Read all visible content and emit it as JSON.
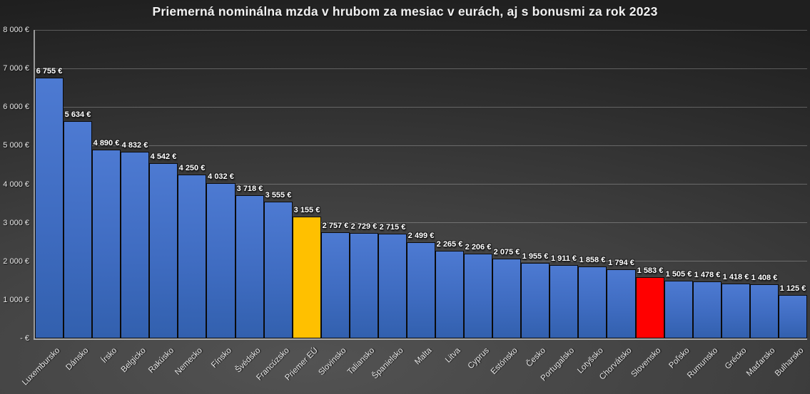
{
  "chart_data": {
    "type": "bar",
    "title": "Priemerná nominálna mzda v hrubom za mesiac v eurách, aj s bonusmi za rok 2023",
    "unit": "€",
    "categories": [
      "Luxembursko",
      "Dánsko",
      "Írsko",
      "Belgicko",
      "Rakúsko",
      "Nemecko",
      "Fínsko",
      "Švédsko",
      "Francúzsko",
      "Priemer EÚ",
      "Slovinsko",
      "Taliansko",
      "Španielsko",
      "Malta",
      "Litva",
      "Cyprus",
      "Estónsko",
      "Česko",
      "Portugalsko",
      "Lotyšsko",
      "Chorvátsko",
      "Slovensko",
      "Poľsko",
      "Rumunsko",
      "Grécko",
      "Maďarsko",
      "Bulharsko"
    ],
    "values": [
      6755,
      5634,
      4890,
      4832,
      4542,
      4250,
      4032,
      3718,
      3555,
      3155,
      2757,
      2729,
      2715,
      2499,
      2265,
      2206,
      2075,
      1955,
      1911,
      1858,
      1794,
      1583,
      1505,
      1478,
      1418,
      1408,
      1125
    ],
    "value_labels": [
      "6 755 €",
      "5 634 €",
      "4 890 €",
      "4 832 €",
      "4 542 €",
      "4 250 €",
      "4 032 €",
      "3 718 €",
      "3 555 €",
      "3 155 €",
      "2 757 €",
      "2 729 €",
      "2 715 €",
      "2 499 €",
      "2 265 €",
      "2 206 €",
      "2 075 €",
      "1 955 €",
      "1 911 €",
      "1 858 €",
      "1 794 €",
      "1 583 €",
      "1 505 €",
      "1 478 €",
      "1 418 €",
      "1 408 €",
      "1 125 €"
    ],
    "ylim": [
      0,
      8000
    ],
    "y_tick_step": 1000,
    "y_ticks": [
      {
        "value": 8000,
        "label": "8 000 €"
      },
      {
        "value": 7000,
        "label": "7 000 €"
      },
      {
        "value": 6000,
        "label": "6 000 €"
      },
      {
        "value": 5000,
        "label": "5 000 €"
      },
      {
        "value": 4000,
        "label": "4 000 €"
      },
      {
        "value": 3000,
        "label": "3 000 €"
      },
      {
        "value": 2000,
        "label": "2 000 €"
      },
      {
        "value": 1000,
        "label": "1 000 €"
      },
      {
        "value": 0,
        "label": "-  €"
      }
    ],
    "grid": true,
    "legend": "none",
    "colors": {
      "bar_default": "#3F6CC1",
      "bar_eu_average": "#FFC000",
      "bar_slovakia": "#FF0000",
      "title_text": "#F2F2F2",
      "axis_text": "#E9E9E9",
      "background": "#3A3A3A"
    },
    "highlighted_bars": [
      {
        "category": "Priemer EÚ",
        "color": "#FFC000"
      },
      {
        "category": "Slovensko",
        "color": "#FF0000"
      }
    ]
  }
}
